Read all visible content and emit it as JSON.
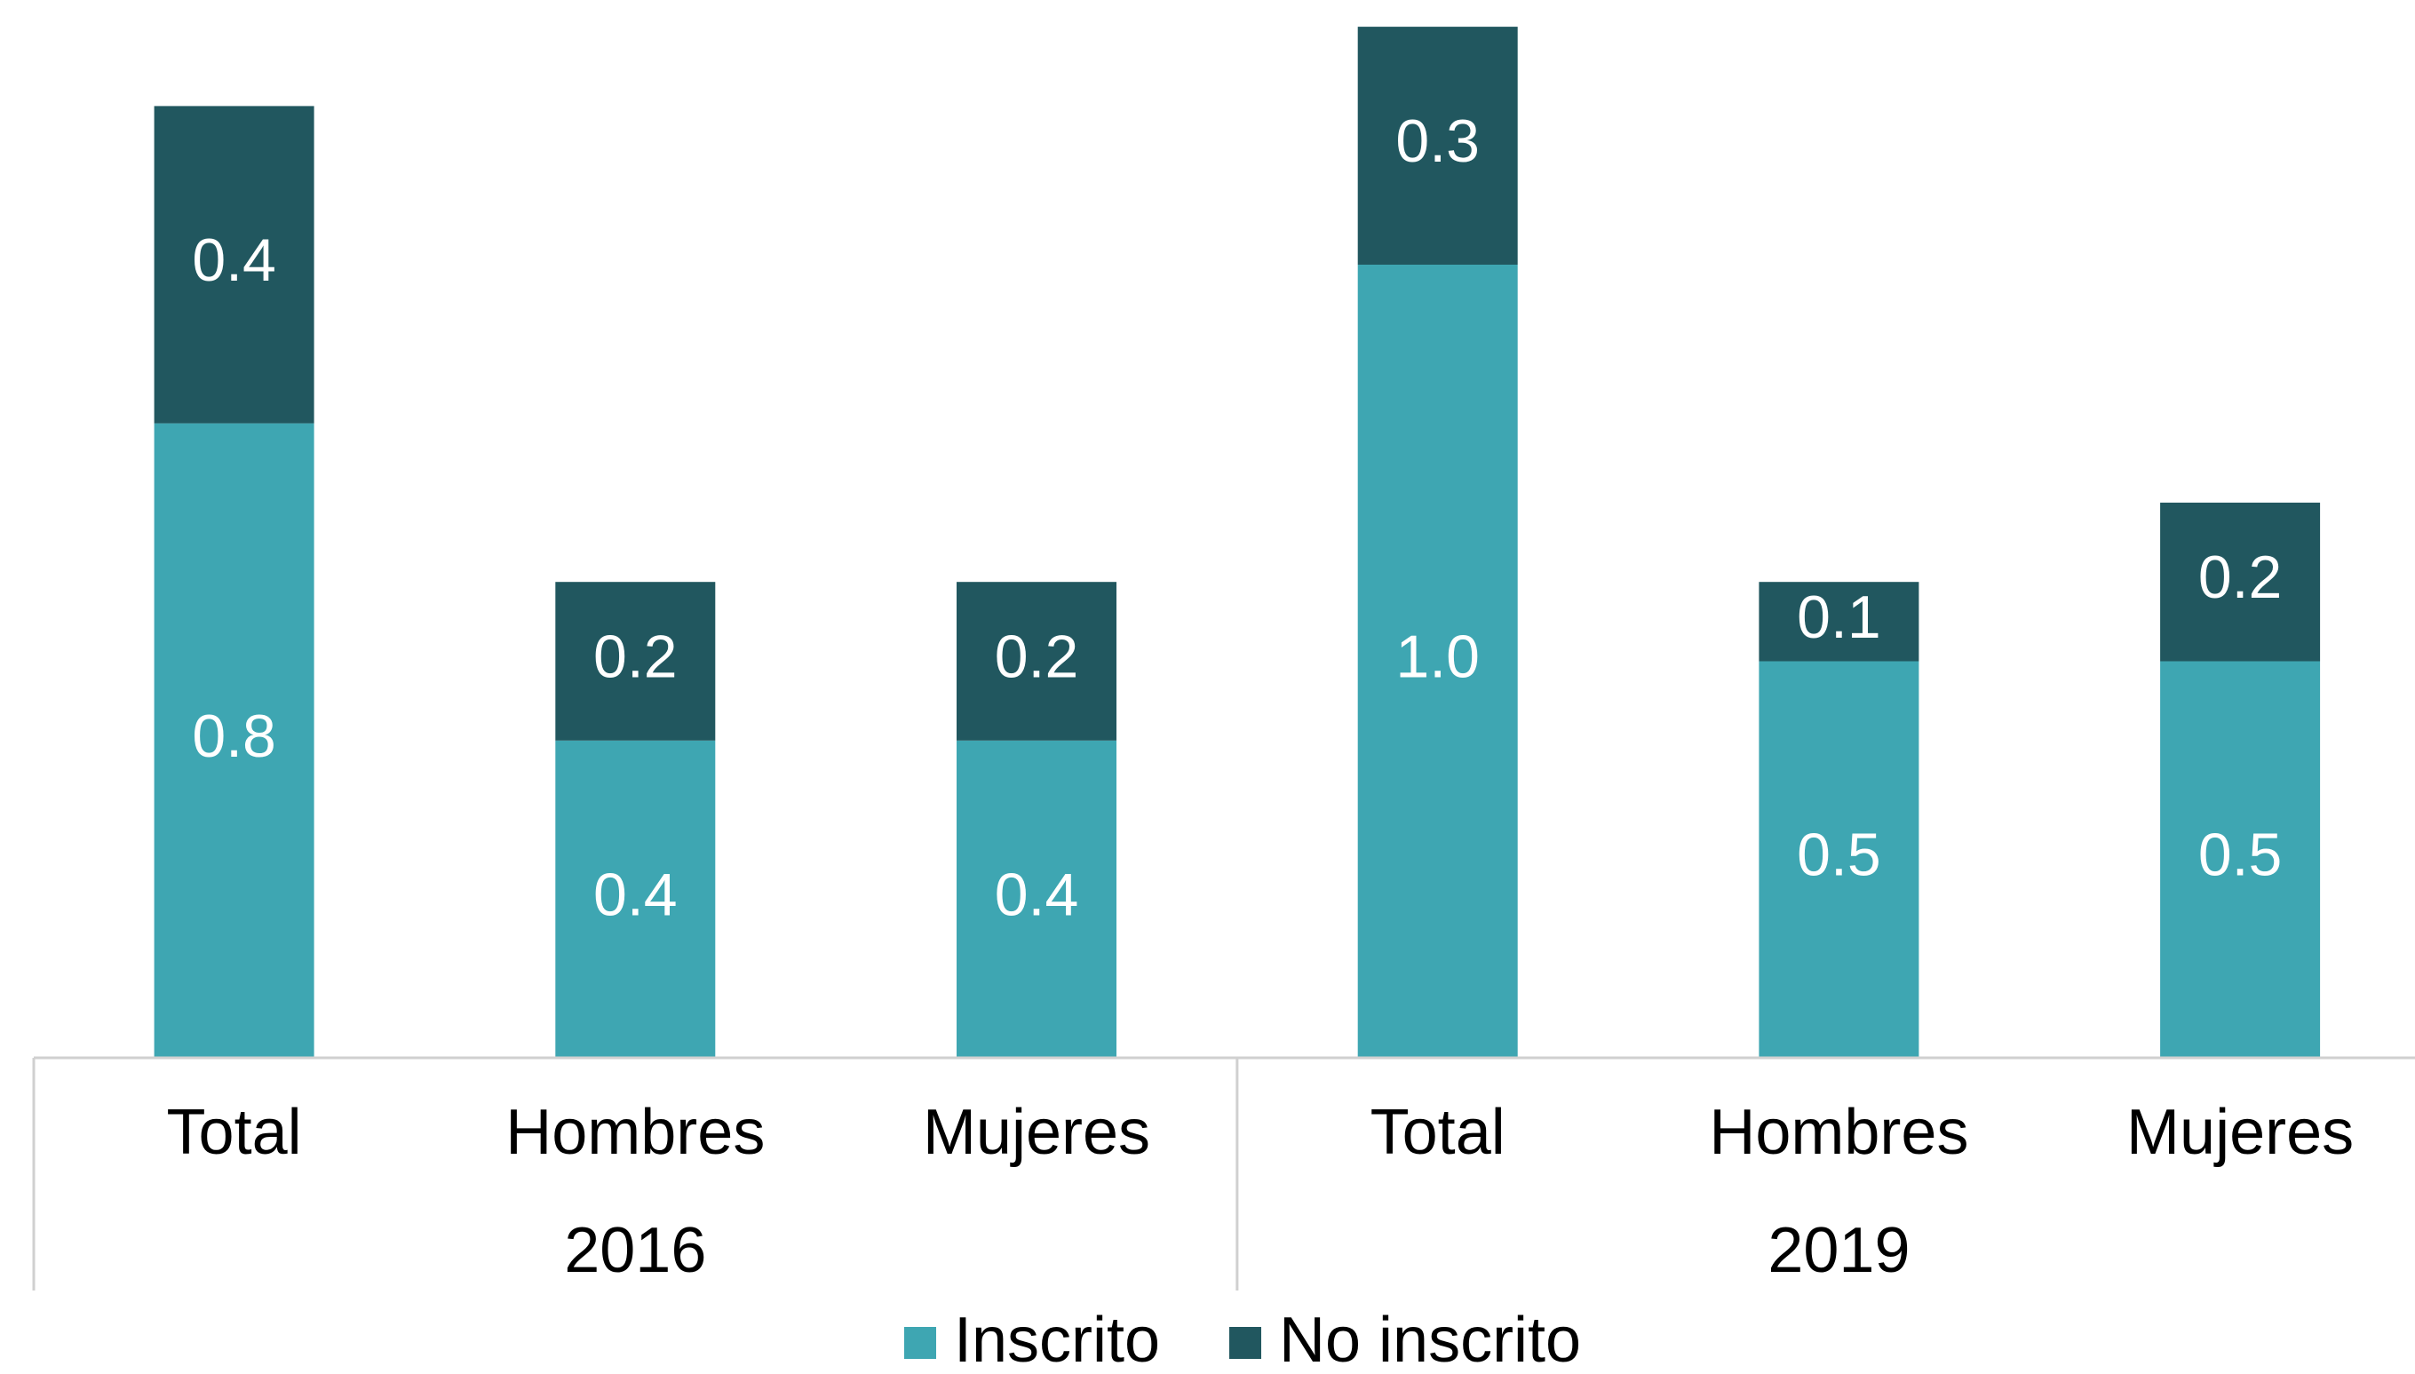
{
  "chart_data": {
    "type": "stacked-bar",
    "categories": [
      "Total",
      "Hombres",
      "Mujeres",
      "Total",
      "Hombres",
      "Mujeres"
    ],
    "groups": [
      "2016",
      "2019"
    ],
    "series": [
      {
        "name": "Inscrito",
        "color": "#3ea6b2",
        "values": [
          0.8,
          0.4,
          0.4,
          1.0,
          0.5,
          0.5
        ],
        "value_labels": [
          "0.8",
          "0.4",
          "0.4",
          "1.0",
          "0.5",
          "0.5"
        ]
      },
      {
        "name": "No inscrito",
        "color": "#21575f",
        "values": [
          0.4,
          0.2,
          0.2,
          0.3,
          0.1,
          0.2
        ],
        "value_labels": [
          "0.4",
          "0.2",
          "0.2",
          "0.3",
          "0.1",
          "0.2"
        ]
      }
    ],
    "legend": "bottom"
  }
}
